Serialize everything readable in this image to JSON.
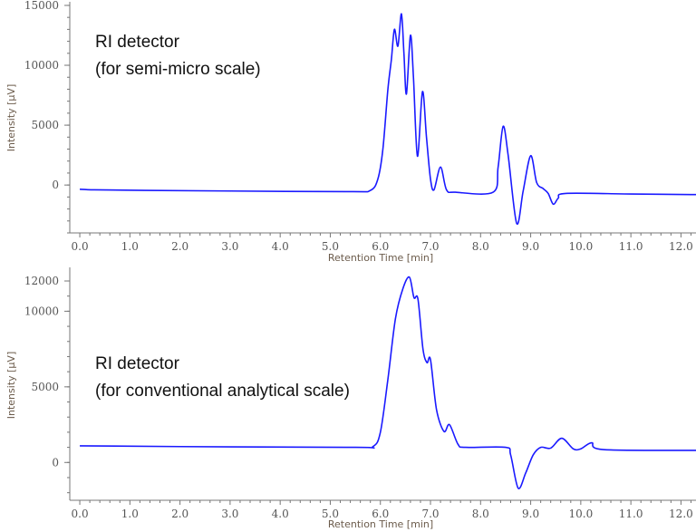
{
  "chart_data": [
    {
      "type": "line",
      "annotation": [
        "RI detector",
        "(for semi-micro scale)"
      ],
      "xlabel": "Retention Time [min]",
      "ylabel": "Intensity [µV]",
      "xlim": [
        -0.2,
        12.3
      ],
      "ylim": [
        -4000,
        15300
      ],
      "xticks": [
        0,
        1,
        2,
        3,
        4,
        5,
        6,
        7,
        8,
        9,
        10,
        11,
        12
      ],
      "xtick_labels": [
        "0.0",
        "1.0",
        "2.0",
        "3.0",
        "4.0",
        "5.0",
        "6.0",
        "7.0",
        "8.0",
        "9.0",
        "10.0",
        "11.0",
        "12.0"
      ],
      "yticks": [
        0,
        5000,
        10000,
        15000
      ],
      "ytick_labels": [
        "0",
        "5000",
        "10000",
        "15000"
      ],
      "grid": false,
      "color": "#1a1aff",
      "series": [
        {
          "x": [
            0,
            0.3,
            1.3,
            3,
            5.4,
            5.8,
            5.95,
            6.05,
            6.15,
            6.22,
            6.28,
            6.35,
            6.42,
            6.47,
            6.52,
            6.6,
            6.66,
            6.74,
            6.84,
            6.92,
            7.0,
            7.07,
            7.2,
            7.32,
            7.5,
            8.25,
            8.35,
            8.45,
            8.55,
            8.72,
            8.85,
            9.0,
            9.12,
            9.25,
            9.35,
            9.45,
            9.55,
            9.7,
            11.0,
            12.3
          ],
          "y": [
            -350,
            -400,
            -450,
            -500,
            -550,
            -450,
            500,
            3000,
            8000,
            10500,
            13000,
            11600,
            14300,
            11000,
            7600,
            12500,
            9000,
            2400,
            7800,
            4000,
            500,
            -400,
            1500,
            -400,
            -600,
            -600,
            1500,
            4900,
            2500,
            -3200,
            -500,
            2450,
            200,
            -300,
            -700,
            -1600,
            -1100,
            -700,
            -750,
            -800
          ]
        }
      ]
    },
    {
      "type": "line",
      "annotation": [
        "RI detector",
        "(for conventional analytical scale)"
      ],
      "xlabel": "Retention Time [min]",
      "ylabel": "Intensity [µV]",
      "xlim": [
        -0.2,
        12.3
      ],
      "ylim": [
        -2500,
        12900
      ],
      "xticks": [
        0,
        1,
        2,
        3,
        4,
        5,
        6,
        7,
        8,
        9,
        10,
        11,
        12
      ],
      "xtick_labels": [
        "0.0",
        "1.0",
        "2.0",
        "3.0",
        "4.0",
        "5.0",
        "6.0",
        "7.0",
        "8.0",
        "9.0",
        "10.0",
        "11.0",
        "12.0"
      ],
      "yticks": [
        0,
        5000,
        10000,
        12000
      ],
      "ytick_labels": [
        "0",
        "5000",
        "10000",
        "12000"
      ],
      "grid": false,
      "color": "#1a1aff",
      "series": [
        {
          "x": [
            0,
            2,
            5.5,
            5.85,
            6.0,
            6.15,
            6.3,
            6.45,
            6.58,
            6.67,
            6.75,
            6.85,
            6.93,
            7.0,
            7.12,
            7.27,
            7.38,
            7.55,
            7.7,
            8.5,
            8.6,
            8.75,
            8.9,
            9.05,
            9.2,
            9.4,
            9.62,
            9.85,
            10.0,
            10.22,
            10.45,
            12.3
          ],
          "y": [
            1100,
            1050,
            1000,
            1050,
            2000,
            5500,
            9500,
            11500,
            12250,
            10900,
            10800,
            7500,
            6600,
            6800,
            3500,
            2050,
            2500,
            1200,
            1000,
            1000,
            500,
            -1700,
            -700,
            500,
            1000,
            950,
            1600,
            900,
            900,
            1300,
            850,
            800
          ]
        }
      ]
    }
  ]
}
